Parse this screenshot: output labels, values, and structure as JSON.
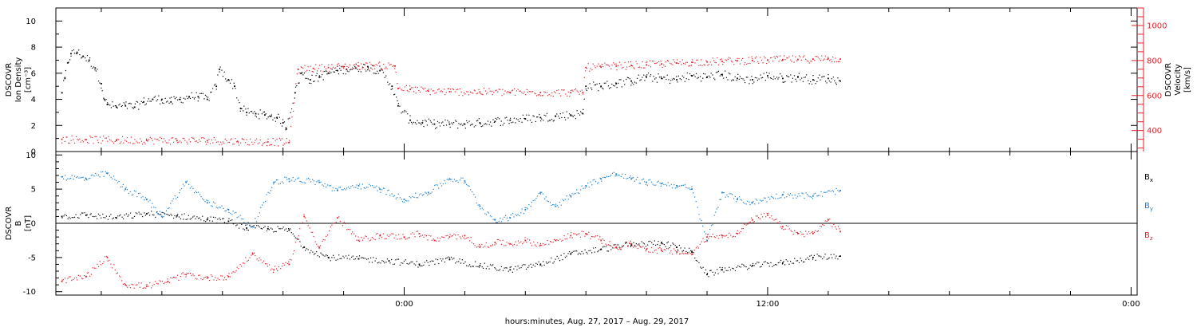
{
  "colors": {
    "density": "#000000",
    "velocity": "#e8202a",
    "bx": "#000000",
    "by": "#1b7fd1",
    "bz": "#e8202a",
    "axes": "#000000"
  },
  "chart_data": [
    {
      "type": "scatter",
      "ylabel_lines": [
        "DSCOVR",
        "Ion Density",
        "[cm⁻³]"
      ],
      "ylim": [
        0,
        11
      ],
      "yticks": [
        0,
        2,
        4,
        6,
        8,
        10
      ],
      "right_axis": {
        "ylabel_lines": [
          "DSCOVR",
          "Velocity",
          "[km/s]"
        ],
        "ylim": [
          280,
          1100
        ],
        "yticks": [
          400,
          600,
          800,
          1000
        ]
      },
      "series": [
        {
          "name": "",
          "axis": "left",
          "color_key": "density",
          "points": [
            [
              -11.3,
              4.5
            ],
            [
              -11.2,
              5.6
            ],
            [
              -11.1,
              6.8
            ],
            [
              -11.0,
              7.5
            ],
            [
              -10.8,
              7.6
            ],
            [
              -10.6,
              7.3
            ],
            [
              -10.4,
              7.0
            ],
            [
              -10.2,
              6.4
            ],
            [
              -10.0,
              5.2
            ],
            [
              -9.9,
              4.0
            ],
            [
              -9.8,
              3.6
            ],
            [
              -9.5,
              3.4
            ],
            [
              -9.2,
              3.5
            ],
            [
              -8.9,
              3.4
            ],
            [
              -8.6,
              3.8
            ],
            [
              -8.3,
              4.0
            ],
            [
              -8.0,
              4.0
            ],
            [
              -7.7,
              3.8
            ],
            [
              -7.4,
              4.0
            ],
            [
              -7.1,
              4.2
            ],
            [
              -6.8,
              4.2
            ],
            [
              -6.5,
              4.0
            ],
            [
              -6.2,
              5.0
            ],
            [
              -6.1,
              6.3
            ],
            [
              -5.8,
              5.5
            ],
            [
              -5.6,
              5.0
            ],
            [
              -5.4,
              3.3
            ],
            [
              -5.2,
              3.0
            ],
            [
              -4.9,
              2.9
            ],
            [
              -4.6,
              2.8
            ],
            [
              -4.4,
              2.7
            ],
            [
              -4.2,
              2.6
            ],
            [
              -4.0,
              2.2
            ],
            [
              -3.9,
              1.8
            ],
            [
              -3.6,
              4.5
            ],
            [
              -3.4,
              6.0
            ],
            [
              -3.1,
              5.5
            ],
            [
              -2.8,
              5.7
            ],
            [
              -2.5,
              6.0
            ],
            [
              -2.2,
              6.2
            ],
            [
              -1.9,
              6.3
            ],
            [
              -1.6,
              6.4
            ],
            [
              -1.2,
              6.5
            ],
            [
              -0.8,
              6.2
            ],
            [
              -0.4,
              5.0
            ],
            [
              -0.2,
              3.5
            ],
            [
              0.2,
              2.4
            ],
            [
              0.6,
              2.2
            ],
            [
              1.0,
              2.1
            ],
            [
              1.5,
              2.1
            ],
            [
              2.0,
              2.1
            ],
            [
              2.5,
              2.2
            ],
            [
              3.0,
              2.3
            ],
            [
              3.5,
              2.4
            ],
            [
              4.0,
              2.5
            ],
            [
              4.5,
              2.6
            ],
            [
              5.0,
              2.7
            ],
            [
              5.5,
              2.8
            ],
            [
              5.9,
              2.9
            ],
            [
              6.0,
              5.0
            ],
            [
              6.5,
              5.0
            ],
            [
              7.0,
              5.2
            ],
            [
              7.5,
              5.4
            ],
            [
              8.0,
              5.7
            ],
            [
              8.5,
              5.6
            ],
            [
              9.0,
              5.5
            ],
            [
              9.5,
              5.8
            ],
            [
              10.0,
              5.7
            ],
            [
              10.5,
              5.9
            ],
            [
              11.0,
              5.6
            ],
            [
              11.5,
              5.5
            ],
            [
              12.0,
              5.8
            ],
            [
              12.5,
              5.6
            ],
            [
              13.0,
              5.7
            ],
            [
              13.5,
              5.5
            ],
            [
              14.0,
              5.6
            ],
            [
              14.4,
              5.4
            ]
          ]
        },
        {
          "name": "",
          "axis": "right",
          "color_key": "velocity",
          "points": [
            [
              -11.3,
              350
            ],
            [
              -10.5,
              348
            ],
            [
              -9.5,
              345
            ],
            [
              -8.5,
              344
            ],
            [
              -7.5,
              342
            ],
            [
              -6.5,
              342
            ],
            [
              -5.5,
              338
            ],
            [
              -4.5,
              335
            ],
            [
              -3.8,
              332
            ],
            [
              -3.5,
              750
            ],
            [
              -3.0,
              755
            ],
            [
              -2.5,
              760
            ],
            [
              -2.0,
              765
            ],
            [
              -1.5,
              768
            ],
            [
              -1.0,
              770
            ],
            [
              -0.3,
              768
            ],
            [
              -0.2,
              640
            ],
            [
              0.2,
              635
            ],
            [
              0.8,
              625
            ],
            [
              1.5,
              622
            ],
            [
              2.5,
              620
            ],
            [
              3.5,
              618
            ],
            [
              4.5,
              617
            ],
            [
              5.5,
              616
            ],
            [
              5.9,
              618
            ],
            [
              6.0,
              760
            ],
            [
              6.5,
              762
            ],
            [
              7.0,
              768
            ],
            [
              7.5,
              772
            ],
            [
              8.0,
              775
            ],
            [
              8.5,
              780
            ],
            [
              9.0,
              785
            ],
            [
              9.5,
              790
            ],
            [
              10.0,
              792
            ],
            [
              10.5,
              795
            ],
            [
              11.0,
              798
            ],
            [
              11.5,
              800
            ],
            [
              12.0,
              802
            ],
            [
              12.5,
              805
            ],
            [
              13.0,
              806
            ],
            [
              13.5,
              808
            ],
            [
              14.0,
              810
            ],
            [
              14.4,
              808
            ]
          ]
        }
      ]
    },
    {
      "type": "scatter",
      "ylabel_lines": [
        "DSCOVR",
        "B",
        "[nT]"
      ],
      "ylim": [
        -10.5,
        10.5
      ],
      "yticks": [
        -10,
        -5,
        0,
        5,
        10
      ],
      "zero_line": true,
      "xlabel": "hours:minutes, Aug. 27, 2017 – Aug. 29, 2017",
      "xlim": [
        -11.5,
        24.2
      ],
      "xticks": [
        0,
        12,
        24
      ],
      "xticklabels": [
        "0:00",
        "12:00",
        "0:00"
      ],
      "xminor_step": 2,
      "series": [
        {
          "name": "B",
          "subscript": "x",
          "color_key": "bx",
          "points": [
            [
              -11.3,
              1.0
            ],
            [
              -10.5,
              1.2
            ],
            [
              -9.5,
              0.8
            ],
            [
              -8.5,
              1.4
            ],
            [
              -7.5,
              1.1
            ],
            [
              -6.5,
              0.6
            ],
            [
              -5.8,
              0.3
            ],
            [
              -5.2,
              -0.7
            ],
            [
              -4.5,
              -0.8
            ],
            [
              -3.8,
              -1.0
            ],
            [
              -3.3,
              -3.5
            ],
            [
              -2.5,
              -5.0
            ],
            [
              -1.5,
              -5.2
            ],
            [
              -0.5,
              -5.5
            ],
            [
              0.5,
              -6.0
            ],
            [
              1.5,
              -5.3
            ],
            [
              2.5,
              -6.2
            ],
            [
              3.5,
              -6.8
            ],
            [
              4.5,
              -6.0
            ],
            [
              5.5,
              -4.5
            ],
            [
              6.5,
              -3.8
            ],
            [
              7.5,
              -3.2
            ],
            [
              8.5,
              -2.8
            ],
            [
              9.0,
              -3.5
            ],
            [
              9.5,
              -4.2
            ],
            [
              10.0,
              -7.5
            ],
            [
              10.5,
              -6.8
            ],
            [
              11.5,
              -6.2
            ],
            [
              12.5,
              -5.8
            ],
            [
              13.5,
              -5.0
            ],
            [
              14.4,
              -4.8
            ]
          ]
        },
        {
          "name": "B",
          "subscript": "y",
          "color_key": "by",
          "points": [
            [
              -11.3,
              6.8
            ],
            [
              -10.5,
              6.5
            ],
            [
              -9.8,
              7.3
            ],
            [
              -9.2,
              5.0
            ],
            [
              -8.5,
              3.5
            ],
            [
              -8.0,
              1.0
            ],
            [
              -7.2,
              6.0
            ],
            [
              -6.5,
              3.0
            ],
            [
              -5.8,
              2.0
            ],
            [
              -5.0,
              -0.5
            ],
            [
              -4.3,
              6.0
            ],
            [
              -3.8,
              6.5
            ],
            [
              -2.8,
              6.0
            ],
            [
              -2.2,
              4.8
            ],
            [
              -1.5,
              5.5
            ],
            [
              -0.8,
              5.0
            ],
            [
              0.0,
              3.5
            ],
            [
              0.8,
              4.5
            ],
            [
              1.5,
              6.5
            ],
            [
              2.0,
              6.2
            ],
            [
              2.5,
              2.5
            ],
            [
              3.0,
              0.5
            ],
            [
              3.5,
              0.8
            ],
            [
              4.0,
              2.0
            ],
            [
              4.5,
              4.5
            ],
            [
              5.0,
              2.5
            ],
            [
              5.5,
              4.0
            ],
            [
              6.0,
              5.5
            ],
            [
              6.5,
              6.5
            ],
            [
              7.0,
              7.2
            ],
            [
              7.5,
              6.5
            ],
            [
              8.0,
              6.0
            ],
            [
              8.5,
              5.8
            ],
            [
              9.0,
              5.5
            ],
            [
              9.5,
              5.0
            ],
            [
              10.0,
              -2.5
            ],
            [
              10.5,
              4.5
            ],
            [
              11.0,
              3.5
            ],
            [
              11.5,
              3.0
            ],
            [
              12.5,
              4.2
            ],
            [
              13.5,
              4.0
            ],
            [
              14.4,
              4.8
            ]
          ]
        },
        {
          "name": "B",
          "subscript": "z",
          "color_key": "bz",
          "points": [
            [
              -11.3,
              -8.5
            ],
            [
              -10.5,
              -7.8
            ],
            [
              -9.8,
              -5.0
            ],
            [
              -9.2,
              -9.0
            ],
            [
              -8.5,
              -9.2
            ],
            [
              -7.8,
              -8.5
            ],
            [
              -7.2,
              -7.5
            ],
            [
              -6.5,
              -8.0
            ],
            [
              -5.8,
              -7.8
            ],
            [
              -5.0,
              -4.5
            ],
            [
              -4.3,
              -6.8
            ],
            [
              -3.8,
              -6.0
            ],
            [
              -3.3,
              1.0
            ],
            [
              -2.8,
              -3.5
            ],
            [
              -2.2,
              0.8
            ],
            [
              -1.5,
              -2.5
            ],
            [
              -0.8,
              -1.8
            ],
            [
              0.0,
              -2.0
            ],
            [
              0.5,
              -1.5
            ],
            [
              1.0,
              -2.5
            ],
            [
              1.5,
              -2.0
            ],
            [
              2.0,
              -1.8
            ],
            [
              2.5,
              -3.5
            ],
            [
              3.0,
              -2.8
            ],
            [
              3.5,
              -3.0
            ],
            [
              4.0,
              -2.5
            ],
            [
              4.5,
              -3.2
            ],
            [
              5.0,
              -2.5
            ],
            [
              5.5,
              -1.8
            ],
            [
              6.0,
              -1.5
            ],
            [
              6.5,
              -2.5
            ],
            [
              7.0,
              -3.5
            ],
            [
              7.5,
              -3.0
            ],
            [
              8.0,
              -3.8
            ],
            [
              8.5,
              -4.0
            ],
            [
              9.0,
              -4.2
            ],
            [
              9.5,
              -4.5
            ],
            [
              10.0,
              -2.0
            ],
            [
              10.5,
              -1.8
            ],
            [
              11.0,
              -1.5
            ],
            [
              11.5,
              0.5
            ],
            [
              12.0,
              1.2
            ],
            [
              12.5,
              -0.5
            ],
            [
              13.0,
              -1.5
            ],
            [
              13.5,
              -1.5
            ],
            [
              14.0,
              0.5
            ],
            [
              14.4,
              -1.2
            ]
          ]
        }
      ]
    }
  ]
}
